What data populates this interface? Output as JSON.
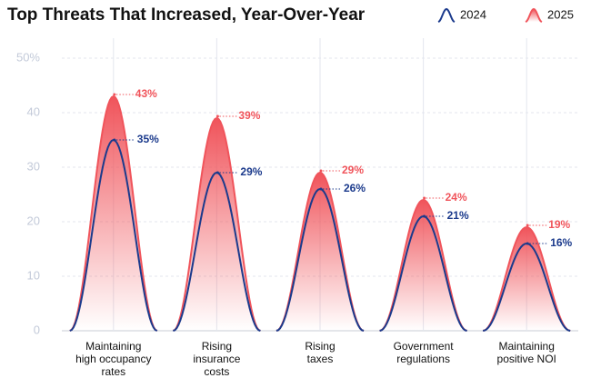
{
  "chart_data": {
    "type": "bell",
    "title": "Top Threats That Increased, Year-Over-Year",
    "categories": [
      [
        "Maintaining",
        "high occupancy",
        "rates"
      ],
      [
        "Rising",
        "insurance",
        "costs"
      ],
      [
        "Rising",
        "taxes"
      ],
      [
        "Government",
        "regulations"
      ],
      [
        "Maintaining",
        "positive NOI"
      ]
    ],
    "series": [
      {
        "name": "2024",
        "color": "#1b3a8c",
        "values": [
          35,
          29,
          26,
          21,
          16
        ],
        "value_labels": [
          "35%",
          "29%",
          "26%",
          "21%",
          "16%"
        ]
      },
      {
        "name": "2025",
        "color": "#f0545b",
        "values": [
          43,
          39,
          29,
          24,
          19
        ],
        "value_labels": [
          "43%",
          "39%",
          "29%",
          "24%",
          "19%"
        ]
      }
    ],
    "ylim": [
      0,
      50
    ],
    "yticks": [
      0,
      10,
      20,
      30,
      40,
      {
        "value": 50,
        "label": "50%"
      }
    ],
    "grid": true,
    "legend": "top-right"
  }
}
